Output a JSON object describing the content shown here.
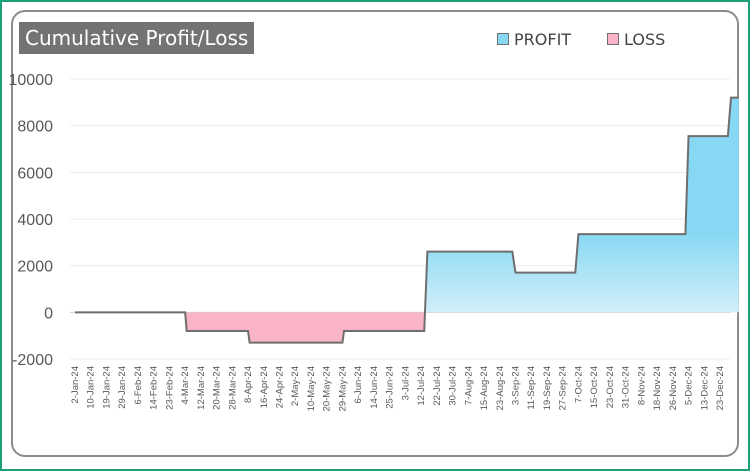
{
  "chart_data": {
    "type": "area",
    "title": "Cumulative Profit/Loss",
    "legend": [
      {
        "label": "PROFIT",
        "color": "#87d8f3"
      },
      {
        "label": "LOSS",
        "color": "#f9b5c7"
      }
    ],
    "legend_position": "top-right",
    "ylim": [
      -2000,
      10000
    ],
    "yticks": [
      -2000,
      0,
      2000,
      4000,
      6000,
      8000,
      10000
    ],
    "grid": true,
    "x_tick_labels": [
      "2-Jan-24",
      "10-Jan-24",
      "19-Jan-24",
      "29-Jan-24",
      "6-Feb-24",
      "14-Feb-24",
      "23-Feb-24",
      "4-Mar-24",
      "12-Mar-24",
      "20-Mar-24",
      "28-Mar-24",
      "8-Apr-24",
      "16-Apr-24",
      "24-Apr-24",
      "2-May-24",
      "10-May-24",
      "20-May-24",
      "29-May-24",
      "6-Jun-24",
      "14-Jun-24",
      "25-Jun-24",
      "3-Jul-24",
      "12-Jul-24",
      "22-Jul-24",
      "30-Jul-24",
      "7-Aug-24",
      "15-Aug-24",
      "23-Aug-24",
      "3-Sep-24",
      "11-Sep-24",
      "19-Sep-24",
      "27-Sep-24",
      "7-Oct-24",
      "15-Oct-24",
      "23-Oct-24",
      "31-Oct-24",
      "8-Nov-24",
      "18-Nov-24",
      "26-Nov-24",
      "5-Dec-24",
      "13-Dec-24",
      "23-Dec-24"
    ],
    "series": [
      {
        "values": [
          [
            0,
            0
          ],
          [
            7.0,
            0
          ],
          [
            7.1,
            -800
          ],
          [
            11.0,
            -800
          ],
          [
            11.1,
            -1300
          ],
          [
            17.0,
            -1300
          ],
          [
            17.1,
            -800
          ],
          [
            22.2,
            -800
          ],
          [
            22.4,
            2600
          ],
          [
            27.8,
            2600
          ],
          [
            28.0,
            1700
          ],
          [
            31.8,
            1700
          ],
          [
            32.0,
            3350
          ],
          [
            38.8,
            3350
          ],
          [
            39.0,
            7550
          ],
          [
            41.5,
            7550
          ],
          [
            41.7,
            9200
          ],
          [
            42.2,
            9200
          ]
        ]
      }
    ]
  },
  "colors": {
    "profit_top": "#87d8f3",
    "profit_bottom": "#eef8fc",
    "loss": "#f9b5c7",
    "line": "#6e6e6e",
    "title_bg": "#737373",
    "frame": "#1f9e7a"
  }
}
